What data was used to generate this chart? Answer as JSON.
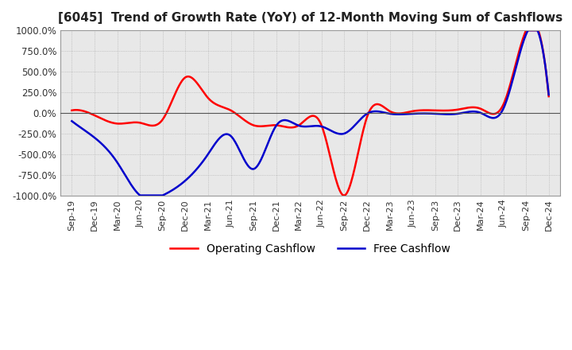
{
  "title": "[6045]  Trend of Growth Rate (YoY) of 12-Month Moving Sum of Cashflows",
  "title_fontsize": 11,
  "background_color": "#ffffff",
  "plot_bg_color": "#e8e8e8",
  "grid_color": "#aaaaaa",
  "ylim": [
    -1000,
    1000
  ],
  "yticks": [
    -1000,
    -750,
    -500,
    -250,
    0,
    250,
    500,
    750,
    1000
  ],
  "x_labels": [
    "Sep-19",
    "Dec-19",
    "Mar-20",
    "Jun-20",
    "Sep-20",
    "Dec-20",
    "Mar-21",
    "Jun-21",
    "Sep-21",
    "Dec-21",
    "Mar-22",
    "Jun-22",
    "Sep-22",
    "Dec-22",
    "Mar-23",
    "Jun-23",
    "Sep-23",
    "Dec-23",
    "Mar-24",
    "Jun-24",
    "Sep-24",
    "Dec-24"
  ],
  "operating_cashflow": [
    30,
    -30,
    -130,
    -120,
    -80,
    430,
    180,
    30,
    -150,
    -150,
    -150,
    -155,
    -1000,
    -50,
    20,
    20,
    30,
    40,
    50,
    100,
    1000,
    200
  ],
  "free_cashflow": [
    -100,
    -300,
    -600,
    -1000,
    -1000,
    -820,
    -500,
    -280,
    -680,
    -155,
    -155,
    -165,
    -250,
    -10,
    -10,
    -10,
    -10,
    -10,
    0,
    50,
    950,
    220
  ],
  "op_color": "#ff0000",
  "free_color": "#0000cc",
  "legend_op": "Operating Cashflow",
  "legend_free": "Free Cashflow"
}
